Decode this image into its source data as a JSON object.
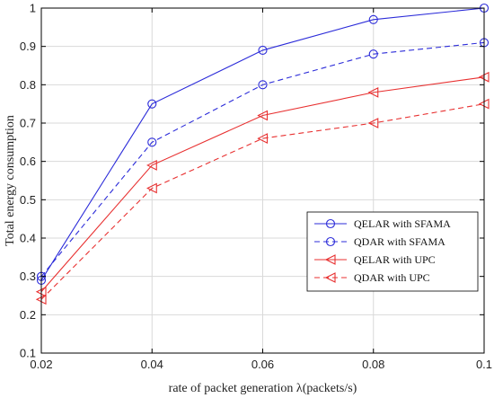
{
  "chart_data": {
    "type": "line",
    "xlabel": "rate of packet generation λ(packets/s)",
    "ylabel": "Total energy consumption",
    "xlim": [
      0.02,
      0.1
    ],
    "ylim": [
      0.1,
      1.0
    ],
    "xticks": [
      0.02,
      0.04,
      0.06,
      0.08,
      0.1
    ],
    "yticks": [
      0.1,
      0.2,
      0.3,
      0.4,
      0.5,
      0.6,
      0.7,
      0.8,
      0.9,
      1.0
    ],
    "xtick_labels": [
      "0.02",
      "0.04",
      "0.06",
      "0.08",
      "0.1"
    ],
    "ytick_labels": [
      "0.1",
      "0.2",
      "0.3",
      "0.4",
      "0.5",
      "0.6",
      "0.7",
      "0.8",
      "0.9",
      "1"
    ],
    "grid": true,
    "legend_position": "middle-right",
    "x": [
      0.02,
      0.04,
      0.06,
      0.08,
      0.1
    ],
    "series": [
      {
        "name": "QELAR with SFAMA",
        "values": [
          0.29,
          0.75,
          0.89,
          0.97,
          1.0
        ],
        "color": "#2b2bd9",
        "dash": "solid",
        "marker": "circle"
      },
      {
        "name": "QDAR with SFAMA",
        "values": [
          0.3,
          0.65,
          0.8,
          0.88,
          0.91
        ],
        "color": "#2b2bd9",
        "dash": "dashed",
        "marker": "circle"
      },
      {
        "name": "QELAR with UPC",
        "values": [
          0.26,
          0.59,
          0.72,
          0.78,
          0.82
        ],
        "color": "#e83030",
        "dash": "solid",
        "marker": "triangle-left"
      },
      {
        "name": "QDAR with UPC",
        "values": [
          0.24,
          0.53,
          0.66,
          0.7,
          0.75
        ],
        "color": "#e83030",
        "dash": "dashed",
        "marker": "triangle-left"
      }
    ]
  }
}
